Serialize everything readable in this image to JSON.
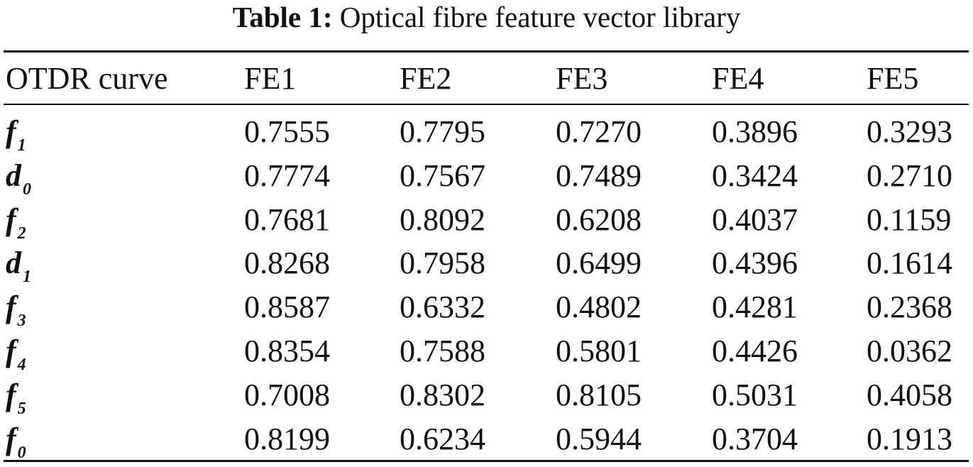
{
  "caption": {
    "label": "Table 1:",
    "text": "Optical fibre feature vector library"
  },
  "table": {
    "columns": [
      "OTDR curve",
      "FE1",
      "FE2",
      "FE3",
      "FE4",
      "FE5"
    ],
    "rows": [
      {
        "symbol": "f",
        "sub": "1",
        "values": [
          "0.7555",
          "0.7795",
          "0.7270",
          "0.3896",
          "0.3293"
        ]
      },
      {
        "symbol": "d",
        "sub": "0",
        "values": [
          "0.7774",
          "0.7567",
          "0.7489",
          "0.3424",
          "0.2710"
        ]
      },
      {
        "symbol": "f",
        "sub": "2",
        "values": [
          "0.7681",
          "0.8092",
          "0.6208",
          "0.4037",
          "0.1159"
        ]
      },
      {
        "symbol": "d",
        "sub": "1",
        "values": [
          "0.8268",
          "0.7958",
          "0.6499",
          "0.4396",
          "0.1614"
        ]
      },
      {
        "symbol": "f",
        "sub": "3",
        "values": [
          "0.8587",
          "0.6332",
          "0.4802",
          "0.4281",
          "0.2368"
        ]
      },
      {
        "symbol": "f",
        "sub": "4",
        "values": [
          "0.8354",
          "0.7588",
          "0.5801",
          "0.4426",
          "0.0362"
        ]
      },
      {
        "symbol": "f",
        "sub": "5",
        "values": [
          "0.7008",
          "0.8302",
          "0.8105",
          "0.5031",
          "0.4058"
        ]
      },
      {
        "symbol": "f",
        "sub": "0",
        "values": [
          "0.8199",
          "0.6234",
          "0.5944",
          "0.3704",
          "0.1913"
        ]
      }
    ]
  }
}
